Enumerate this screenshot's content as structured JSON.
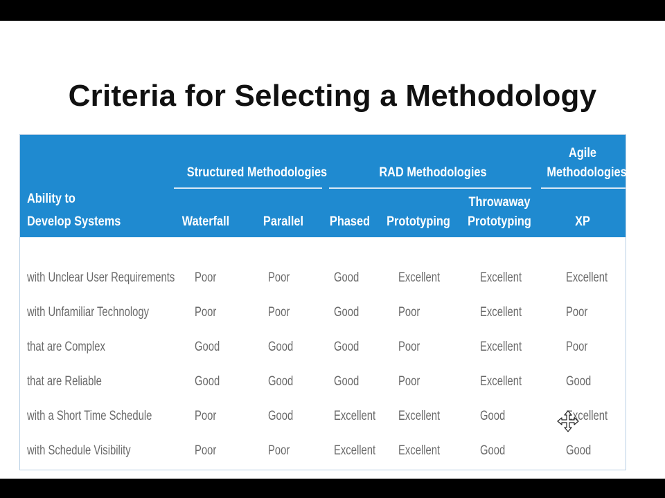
{
  "title": "Criteria for Selecting a Methodology",
  "table": {
    "row_header": [
      "Ability to",
      "Develop Systems"
    ],
    "groups": {
      "structured": "Structured Methodologies",
      "rad": "RAD Methodologies",
      "agile": [
        "Agile",
        "Methodologies"
      ]
    },
    "columns": {
      "waterfall": "Waterfall",
      "parallel": "Parallel",
      "phased": "Phased",
      "prototyping": "Prototyping",
      "throwaway": [
        "Throwaway",
        "Prototyping"
      ],
      "xp": "XP"
    },
    "rows": [
      {
        "label": "with Unclear User Requirements",
        "cells": [
          "Poor",
          "Poor",
          "Good",
          "Excellent",
          "Excellent",
          "Excellent"
        ]
      },
      {
        "label": "with Unfamiliar Technology",
        "cells": [
          "Poor",
          "Poor",
          "Good",
          "Poor",
          "Excellent",
          "Poor"
        ]
      },
      {
        "label": "that are Complex",
        "cells": [
          "Good",
          "Good",
          "Good",
          "Poor",
          "Excellent",
          "Poor"
        ]
      },
      {
        "label": "that are Reliable",
        "cells": [
          "Good",
          "Good",
          "Good",
          "Poor",
          "Excellent",
          "Good"
        ]
      },
      {
        "label": "with a Short Time Schedule",
        "cells": [
          "Poor",
          "Good",
          "Excellent",
          "Excellent",
          "Good",
          "Excellent"
        ]
      },
      {
        "label": "with Schedule Visibility",
        "cells": [
          "Poor",
          "Poor",
          "Excellent",
          "Excellent",
          "Good",
          "Good"
        ]
      }
    ]
  },
  "cursor_icon": "move-cursor-icon",
  "colors": {
    "header_bg": "#1f8ad0",
    "header_text": "#ffffff",
    "cell_text": "#6a6a6a",
    "letterbox": "#000000"
  }
}
